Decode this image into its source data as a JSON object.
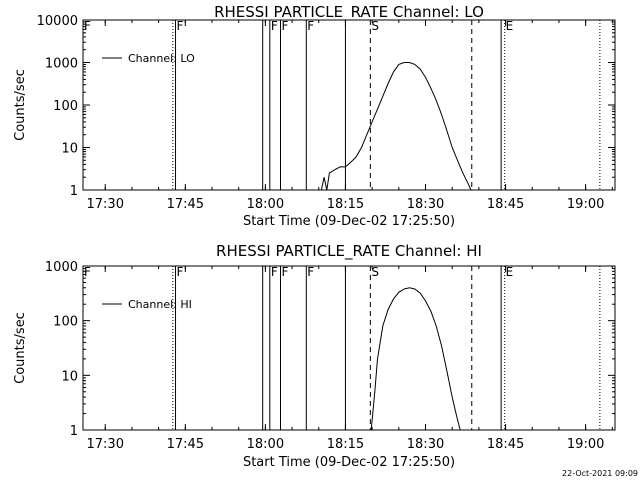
{
  "footer": {
    "timestamp": "22-Oct-2021 09:09"
  },
  "chart_data": [
    {
      "type": "line",
      "title": "RHESSI PARTICLE_RATE Channel: LO",
      "xlabel": "Start Time (09-Dec-02 17:25:50)",
      "ylabel": "Counts/sec",
      "y_scale": "log",
      "xlim": [
        "17:25:50",
        "19:05:30"
      ],
      "ylim": [
        1,
        10000
      ],
      "x_ticks": [
        "17:30",
        "17:45",
        "18:00",
        "18:15",
        "18:30",
        "18:45",
        "19:00"
      ],
      "y_ticks": [
        "1",
        "10",
        "100",
        "1000",
        "10000"
      ],
      "legend": {
        "position": "top-left",
        "entries": [
          "Channel: LO"
        ]
      },
      "series": [
        {
          "name": "Channel: LO",
          "x": [
            "18:10:30",
            "18:11:00",
            "18:11:30",
            "18:12:00",
            "18:13:00",
            "18:14:00",
            "18:15:00",
            "18:16:00",
            "18:17:00",
            "18:18:00",
            "18:19:00",
            "18:20:00",
            "18:21:00",
            "18:22:00",
            "18:23:00",
            "18:24:00",
            "18:25:00",
            "18:26:00",
            "18:27:00",
            "18:28:00",
            "18:29:00",
            "18:30:00",
            "18:31:00",
            "18:32:00",
            "18:33:00",
            "18:34:00",
            "18:35:00",
            "18:36:00",
            "18:37:00",
            "18:38:00",
            "18:38:30"
          ],
          "y": [
            1,
            2,
            1,
            2.5,
            3,
            3.5,
            3.5,
            4.5,
            6,
            10,
            20,
            40,
            80,
            160,
            320,
            600,
            900,
            1000,
            1000,
            900,
            700,
            450,
            250,
            130,
            60,
            25,
            10,
            5,
            2.5,
            1.4,
            1
          ]
        }
      ],
      "markers": [
        {
          "time": "17:25:50",
          "style": "dotted",
          "label": "F"
        },
        {
          "time": "17:42:40",
          "style": "dotted",
          "label": ""
        },
        {
          "time": "17:43:10",
          "style": "solid",
          "label": "F"
        },
        {
          "time": "17:59:30",
          "style": "solid",
          "label": ""
        },
        {
          "time": "18:00:50",
          "style": "solid",
          "label": "F"
        },
        {
          "time": "18:02:50",
          "style": "solid",
          "label": "F"
        },
        {
          "time": "18:07:40",
          "style": "solid",
          "label": "F"
        },
        {
          "time": "18:15:00",
          "style": "solid",
          "label": ""
        },
        {
          "time": "18:19:40",
          "style": "dashed",
          "label": "S"
        },
        {
          "time": "18:38:40",
          "style": "dashed",
          "label": ""
        },
        {
          "time": "18:44:10",
          "style": "solid",
          "label": ""
        },
        {
          "time": "18:44:50",
          "style": "dotted",
          "label": "E"
        },
        {
          "time": "19:02:40",
          "style": "dotted",
          "label": ""
        }
      ]
    },
    {
      "type": "line",
      "title": "RHESSI PARTICLE_RATE Channel: HI",
      "xlabel": "Start Time (09-Dec-02 17:25:50)",
      "ylabel": "Counts/sec",
      "y_scale": "log",
      "xlim": [
        "17:25:50",
        "19:05:30"
      ],
      "ylim": [
        1,
        1000
      ],
      "x_ticks": [
        "17:30",
        "17:45",
        "18:00",
        "18:15",
        "18:30",
        "18:45",
        "19:00"
      ],
      "y_ticks": [
        "1",
        "10",
        "100",
        "1000"
      ],
      "legend": {
        "position": "top-left",
        "entries": [
          "Channel: HI"
        ]
      },
      "series": [
        {
          "name": "Channel: HI",
          "x": [
            "18:19:50",
            "18:20:30",
            "18:21:00",
            "18:22:00",
            "18:23:00",
            "18:24:00",
            "18:25:00",
            "18:26:00",
            "18:27:00",
            "18:28:00",
            "18:29:00",
            "18:30:00",
            "18:31:00",
            "18:32:00",
            "18:33:00",
            "18:34:00",
            "18:35:00",
            "18:35:50",
            "18:36:30"
          ],
          "y": [
            1,
            5,
            20,
            80,
            160,
            250,
            330,
            380,
            400,
            380,
            320,
            230,
            150,
            80,
            35,
            12,
            4,
            1.8,
            1
          ]
        }
      ],
      "markers": [
        {
          "time": "17:25:50",
          "style": "dotted",
          "label": "F"
        },
        {
          "time": "17:42:40",
          "style": "dotted",
          "label": ""
        },
        {
          "time": "17:43:10",
          "style": "solid",
          "label": "F"
        },
        {
          "time": "17:59:30",
          "style": "solid",
          "label": ""
        },
        {
          "time": "18:00:50",
          "style": "solid",
          "label": "F"
        },
        {
          "time": "18:02:50",
          "style": "solid",
          "label": "F"
        },
        {
          "time": "18:07:40",
          "style": "solid",
          "label": "F"
        },
        {
          "time": "18:15:00",
          "style": "solid",
          "label": ""
        },
        {
          "time": "18:19:40",
          "style": "dashed",
          "label": "S"
        },
        {
          "time": "18:38:40",
          "style": "dashed",
          "label": ""
        },
        {
          "time": "18:44:10",
          "style": "solid",
          "label": ""
        },
        {
          "time": "18:44:50",
          "style": "dotted",
          "label": "E"
        },
        {
          "time": "19:02:40",
          "style": "dotted",
          "label": ""
        }
      ]
    }
  ]
}
